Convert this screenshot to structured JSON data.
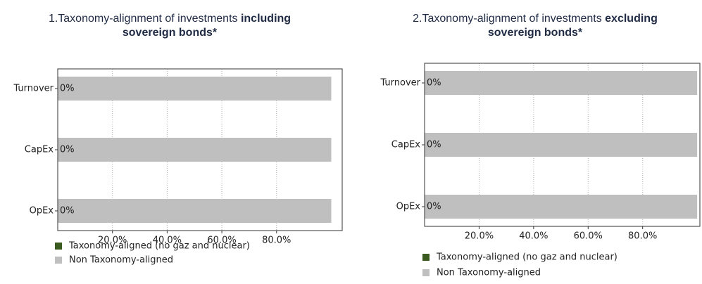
{
  "chart_data": [
    {
      "type": "bar",
      "orientation": "horizontal",
      "stacked": true,
      "title": {
        "text": "1.Taxonomy-alignment of investments ",
        "bold": "including sovereign bonds*"
      },
      "categories": [
        "Turnover",
        "CapEx",
        "OpEx"
      ],
      "series": [
        {
          "name": "Taxonomy-aligned (no gaz and nuclear)",
          "color": "#3b5a1f",
          "values": [
            0,
            0,
            0
          ],
          "value_labels": [
            "0%",
            "0%",
            "0%"
          ]
        },
        {
          "name": "Non Taxonomy-aligned",
          "color": "#bfbfbf",
          "values": [
            100,
            100,
            100
          ]
        }
      ],
      "xlim": [
        0,
        104
      ],
      "xticks": [
        {
          "value": 20,
          "label": "20.0%"
        },
        {
          "value": 40,
          "label": "40.0%"
        },
        {
          "value": 60,
          "label": "60.0%"
        },
        {
          "value": 80,
          "label": "80.0%"
        }
      ],
      "grid": true
    },
    {
      "type": "bar",
      "orientation": "horizontal",
      "stacked": true,
      "title": {
        "text": "2.Taxonomy-alignment of investments ",
        "bold": "excluding sovereign bonds*"
      },
      "categories": [
        "Turnover",
        "CapEx",
        "OpEx"
      ],
      "series": [
        {
          "name": "Taxonomy-aligned (no gaz and nuclear)",
          "color": "#3b5a1f",
          "values": [
            0,
            0,
            0
          ],
          "value_labels": [
            "0%",
            "0%",
            "0%"
          ]
        },
        {
          "name": "Non Taxonomy-aligned",
          "color": "#bfbfbf",
          "values": [
            100,
            100,
            100
          ]
        }
      ],
      "xlim": [
        0,
        101
      ],
      "xticks": [
        {
          "value": 20,
          "label": "20.0%"
        },
        {
          "value": 40,
          "label": "40.0%"
        },
        {
          "value": 60,
          "label": "60.0%"
        },
        {
          "value": 80,
          "label": "80.0%"
        }
      ],
      "grid": true
    }
  ]
}
